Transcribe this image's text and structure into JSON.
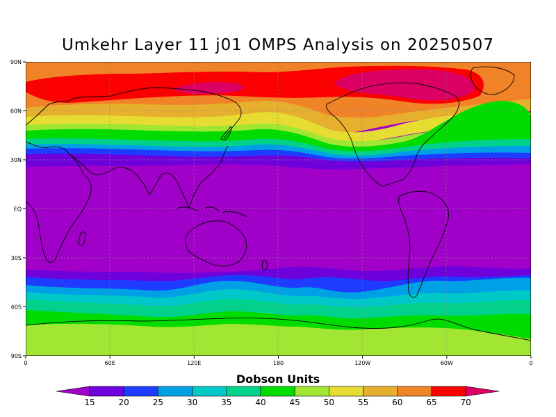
{
  "title": "Umkehr Layer 11 j01 OMPS Analysis on 20250507",
  "lat_labels": [
    "90N",
    "60N",
    "30N",
    "EQ",
    "30S",
    "60S",
    "90S"
  ],
  "lon_labels": [
    "0",
    "60E",
    "120E",
    "180",
    "120W",
    "60W",
    "0"
  ],
  "colorbar": {
    "title": "Dobson Units",
    "levels": [
      "15",
      "20",
      "25",
      "30",
      "35",
      "40",
      "45",
      "50",
      "55",
      "60",
      "65",
      "70"
    ],
    "colors": [
      "#a000c8",
      "#6e00dc",
      "#1e3cff",
      "#00a0e6",
      "#00c8c8",
      "#00d28c",
      "#00dc00",
      "#a0e632",
      "#e6dc32",
      "#e6af2d",
      "#f08228",
      "#fa0000",
      "#dc0064"
    ]
  },
  "chart_data": {
    "type": "heatmap",
    "title": "Umkehr Layer 11 j01 OMPS Analysis on 20250507",
    "colorbar_label": "Dobson Units",
    "xlim": [
      0,
      360
    ],
    "ylim": [
      -90,
      90
    ],
    "grid": true,
    "zonal_band_values": [
      {
        "lat_range": [
          72,
          85
        ],
        "value": 70
      },
      {
        "lat_range": [
          64,
          72
        ],
        "value": 67
      },
      {
        "lat_range": [
          58,
          64
        ],
        "value": 62
      },
      {
        "lat_range": [
          52,
          58
        ],
        "value": 57
      },
      {
        "lat_range": [
          47,
          52
        ],
        "value": 52
      },
      {
        "lat_range": [
          43,
          47
        ],
        "value": 47
      },
      {
        "lat_range": [
          39,
          43
        ],
        "value": 42
      },
      {
        "lat_range": [
          35,
          39
        ],
        "value": 37
      },
      {
        "lat_range": [
          31,
          35
        ],
        "value": 32
      },
      {
        "lat_range": [
          28,
          31
        ],
        "value": 22
      },
      {
        "lat_range": [
          -40,
          28
        ],
        "value": 14
      },
      {
        "lat_range": [
          -44,
          -40
        ],
        "value": 22
      },
      {
        "lat_range": [
          -49,
          -44
        ],
        "value": 27
      },
      {
        "lat_range": [
          -54,
          -49
        ],
        "value": 32
      },
      {
        "lat_range": [
          -58,
          -54
        ],
        "value": 37
      },
      {
        "lat_range": [
          -62,
          -58
        ],
        "value": 42
      },
      {
        "lat_range": [
          -66,
          -62
        ],
        "value": 47
      },
      {
        "lat_range": [
          -90,
          -66
        ],
        "value": 50
      }
    ]
  }
}
